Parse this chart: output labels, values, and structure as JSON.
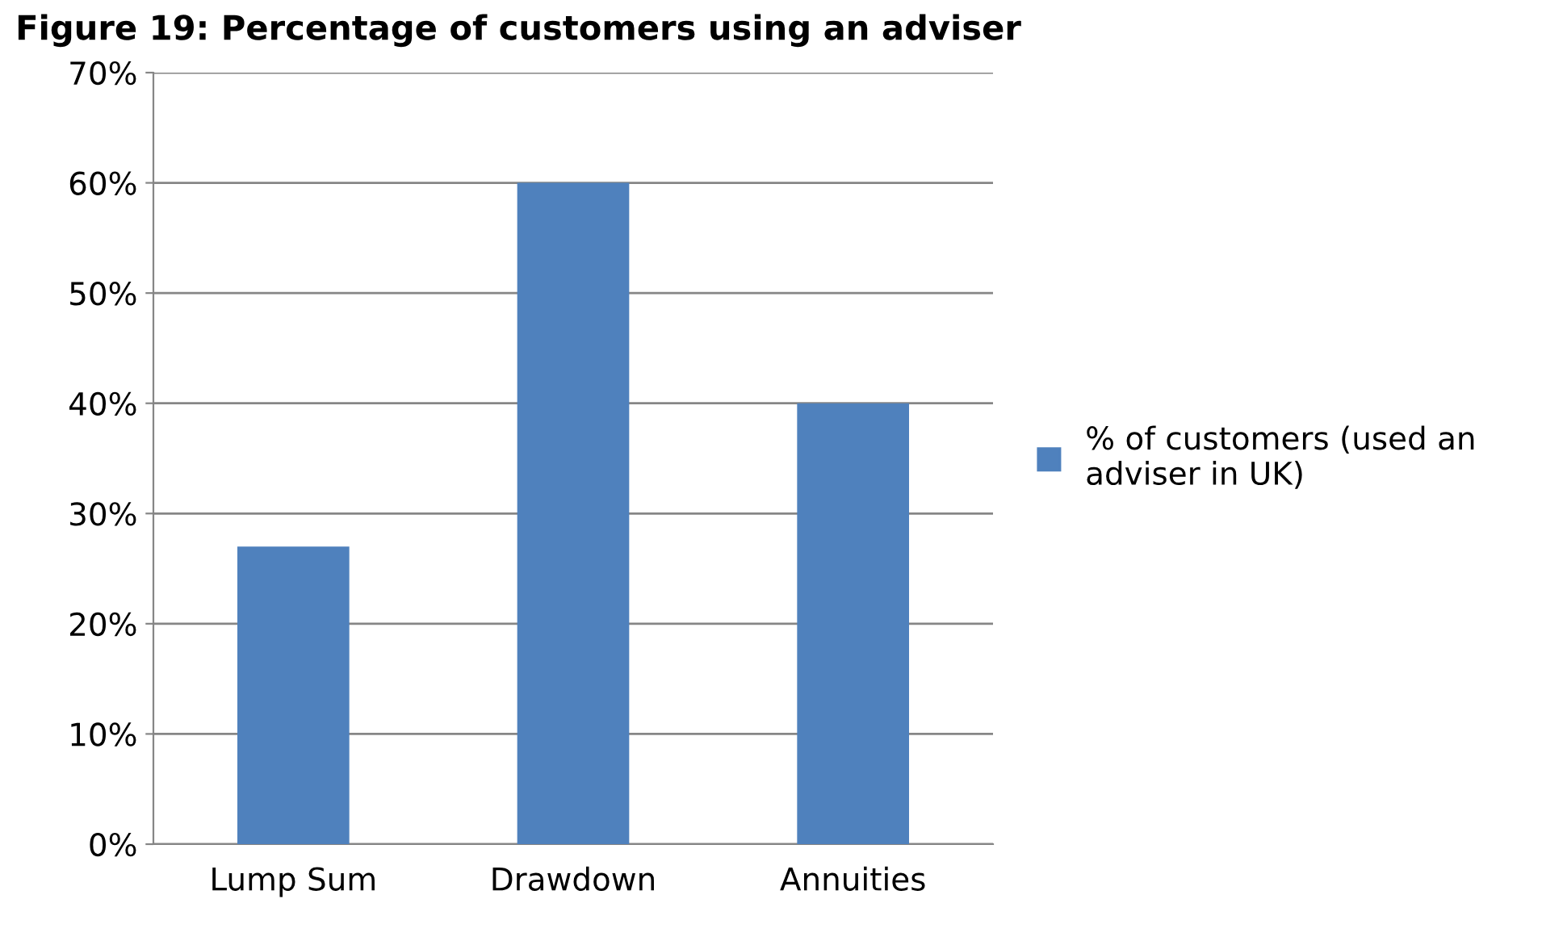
{
  "chart_data": {
    "type": "bar",
    "title": "Figure 19: Percentage of customers using an adviser",
    "categories": [
      "Lump Sum",
      "Drawdown",
      "Annuities"
    ],
    "series": [
      {
        "name": "% of customers (used an adviser in UK)",
        "color": "#4f81bd",
        "values": [
          27,
          60,
          40
        ]
      }
    ],
    "ylim": [
      0,
      70
    ],
    "yticks": [
      {
        "value": 0,
        "label": "0%"
      },
      {
        "value": 10,
        "label": "10%"
      },
      {
        "value": 20,
        "label": "20%"
      },
      {
        "value": 30,
        "label": "30%"
      },
      {
        "value": 40,
        "label": "40%"
      },
      {
        "value": 50,
        "label": "50%"
      },
      {
        "value": 60,
        "label": "60%"
      },
      {
        "value": 70,
        "label": "70%"
      }
    ],
    "grid": "y",
    "legend": "right"
  }
}
